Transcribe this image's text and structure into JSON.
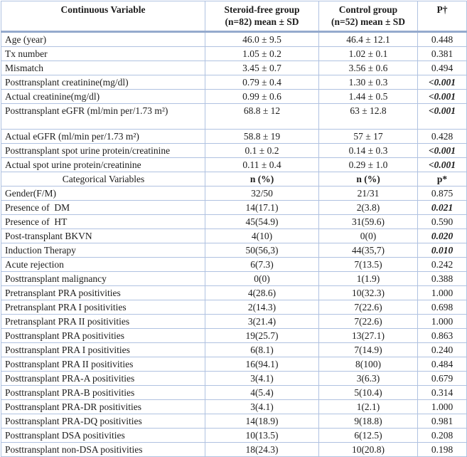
{
  "table": {
    "header": {
      "continuous_variable": "Continuous Variable",
      "group1_line1": "Steroid-free group",
      "group1_line2": "(n=82) mean ± SD",
      "group2_line1": "Control group",
      "group2_line2": "(n=52) mean ± SD",
      "p_label": "P†"
    },
    "rows": [
      {
        "label": "Age (year)",
        "g1": "46.0 ± 9.5",
        "g2": "46.4 ± 12.1",
        "p": "0.448",
        "sig": false
      },
      {
        "label": "Tx number",
        "g1": "1.05 ± 0.2",
        "g2": "1.02 ± 0.1",
        "p": "0.381",
        "sig": false
      },
      {
        "label": "Mismatch",
        "g1": "3.45 ± 0.7",
        "g2": "3.56 ± 0.6",
        "p": "0.494",
        "sig": false
      },
      {
        "label": "Posttransplant creatinine(mg/dl)",
        "g1": "0.79 ± 0.4",
        "g2": "1.30 ± 0.3",
        "p": "<0.001",
        "sig": true
      },
      {
        "label": "Actual creatinine(mg/dl)",
        "g1": "0.99 ± 0.6",
        "g2": "1.44 ± 0.5",
        "p": "<0.001",
        "sig": true
      },
      {
        "label": "Posttransplant eGFR (ml/min per/1.73 m²)",
        "g1": "68.8 ± 12",
        "g2": "63 ± 12.8",
        "p": "<0.001",
        "sig": true,
        "tall": true
      },
      {
        "label": "Actual eGFR (ml/min per/1.73 m²)",
        "g1": "58.8 ± 19",
        "g2": "57 ± 17",
        "p": "0.428",
        "sig": false
      },
      {
        "label": "Posttransplant spot urine protein/creatinine",
        "g1": "0.1 ± 0.2",
        "g2": "0.14 ± 0.3",
        "p": "<0.001",
        "sig": true
      },
      {
        "label": "Actual spot urine protein/creatinine",
        "g1": "0.11 ± 0.4",
        "g2": "0.29 ± 1.0",
        "p": "<0.001",
        "sig": true
      },
      {
        "label": "Categorical Variables",
        "g1": "n (%)",
        "g2": "n (%)",
        "p": "p*",
        "sig": false,
        "section": true
      },
      {
        "label": "Gender(F/M)",
        "g1": "32/50",
        "g2": "21/31",
        "p": "0.875",
        "sig": false
      },
      {
        "label": "Presence of  DM",
        "g1": "14(17.1)",
        "g2": "2(3.8)",
        "p": "0.021",
        "sig": true
      },
      {
        "label": "Presence of  HT",
        "g1": "45(54.9)",
        "g2": "31(59.6)",
        "p": "0.590",
        "sig": false
      },
      {
        "label": "Post-transplant BKVN",
        "g1": "4(10)",
        "g2": "0(0)",
        "p": "0.020",
        "sig": true
      },
      {
        "label": "Induction Therapy",
        "g1": "50(56,3)",
        "g2": "44(35,7)",
        "p": "0.010",
        "sig": true
      },
      {
        "label": "Acute rejection",
        "g1": "6(7.3)",
        "g2": "7(13.5)",
        "p": "0.242",
        "sig": false
      },
      {
        "label": "Posttransplant malignancy",
        "g1": "0(0)",
        "g2": "1(1.9)",
        "p": "0.388",
        "sig": false
      },
      {
        "label": "Pretransplant PRA positivities",
        "g1": "4(28.6)",
        "g2": "10(32.3)",
        "p": "1.000",
        "sig": false
      },
      {
        "label": "Pretransplant PRA I positivities",
        "g1": "2(14.3)",
        "g2": "7(22.6)",
        "p": "0.698",
        "sig": false
      },
      {
        "label": "Pretransplant PRA II positivities",
        "g1": "3(21.4)",
        "g2": "7(22.6)",
        "p": "1.000",
        "sig": false
      },
      {
        "label": "Posttransplant PRA positivities",
        "g1": "19(25.7)",
        "g2": "13(27.1)",
        "p": "0.863",
        "sig": false
      },
      {
        "label": "Posttransplant PRA I positivities",
        "g1": "6(8.1)",
        "g2": "7(14.9)",
        "p": "0.240",
        "sig": false
      },
      {
        "label": "Posttransplant PRA II positivities",
        "g1": "16(94.1)",
        "g2": "8(100)",
        "p": "0.484",
        "sig": false
      },
      {
        "label": "Posttransplant PRA-A positivities",
        "g1": "3(4.1)",
        "g2": "3(6.3)",
        "p": "0.679",
        "sig": false
      },
      {
        "label": "Posttransplant PRA-B positivities",
        "g1": "4(5.4)",
        "g2": "5(10.4)",
        "p": "0.314",
        "sig": false
      },
      {
        "label": "Posttransplant PRA-DR positivities",
        "g1": "3(4.1)",
        "g2": "1(2.1)",
        "p": "1.000",
        "sig": false
      },
      {
        "label": "Posttransplant PRA-DQ positivities",
        "g1": "14(18.9)",
        "g2": "9(18.8)",
        "p": "0.981",
        "sig": false
      },
      {
        "label": "Posttransplant DSA positivities",
        "g1": "10(13.5)",
        "g2": "6(12.5)",
        "p": "0.208",
        "sig": false
      },
      {
        "label": "Posttransplant non-DSA positivities",
        "g1": "18(24.3)",
        "g2": "10(20.8)",
        "p": "0.198",
        "sig": false
      }
    ]
  },
  "colors": {
    "border_light": "#b0c2e1",
    "border_heavy": "#95aacd",
    "text": "#1c1c1c",
    "background": "#ffffff"
  }
}
